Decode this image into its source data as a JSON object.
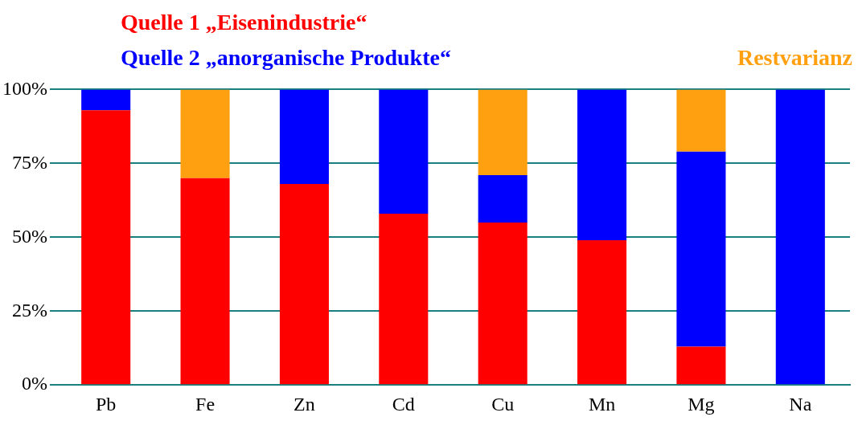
{
  "chart_data": {
    "type": "bar",
    "stacked": true,
    "categories": [
      "Pb",
      "Fe",
      "Zn",
      "Cd",
      "Cu",
      "Mn",
      "Mg",
      "Na"
    ],
    "series": [
      {
        "name": "Quelle 1 „Eisenindustrie“",
        "color": "#ff0000",
        "values": [
          93,
          70,
          68,
          58,
          55,
          49,
          13,
          0
        ]
      },
      {
        "name": "Quelle 2 „anorganische Produkte“",
        "color": "#0000ff",
        "values": [
          7,
          0,
          32,
          42,
          16,
          51,
          66,
          100
        ]
      },
      {
        "name": "Restvarianz",
        "color": "#ffa010",
        "values": [
          0,
          30,
          0,
          0,
          29,
          0,
          21,
          0
        ]
      }
    ],
    "ylim": [
      0,
      100
    ],
    "yticks": [
      {
        "value": 0,
        "label": "0%"
      },
      {
        "value": 25,
        "label": "25%"
      },
      {
        "value": 50,
        "label": "50%"
      },
      {
        "value": 75,
        "label": "75%"
      },
      {
        "value": 100,
        "label": "100%"
      }
    ],
    "grid": "y",
    "legend": "top"
  }
}
